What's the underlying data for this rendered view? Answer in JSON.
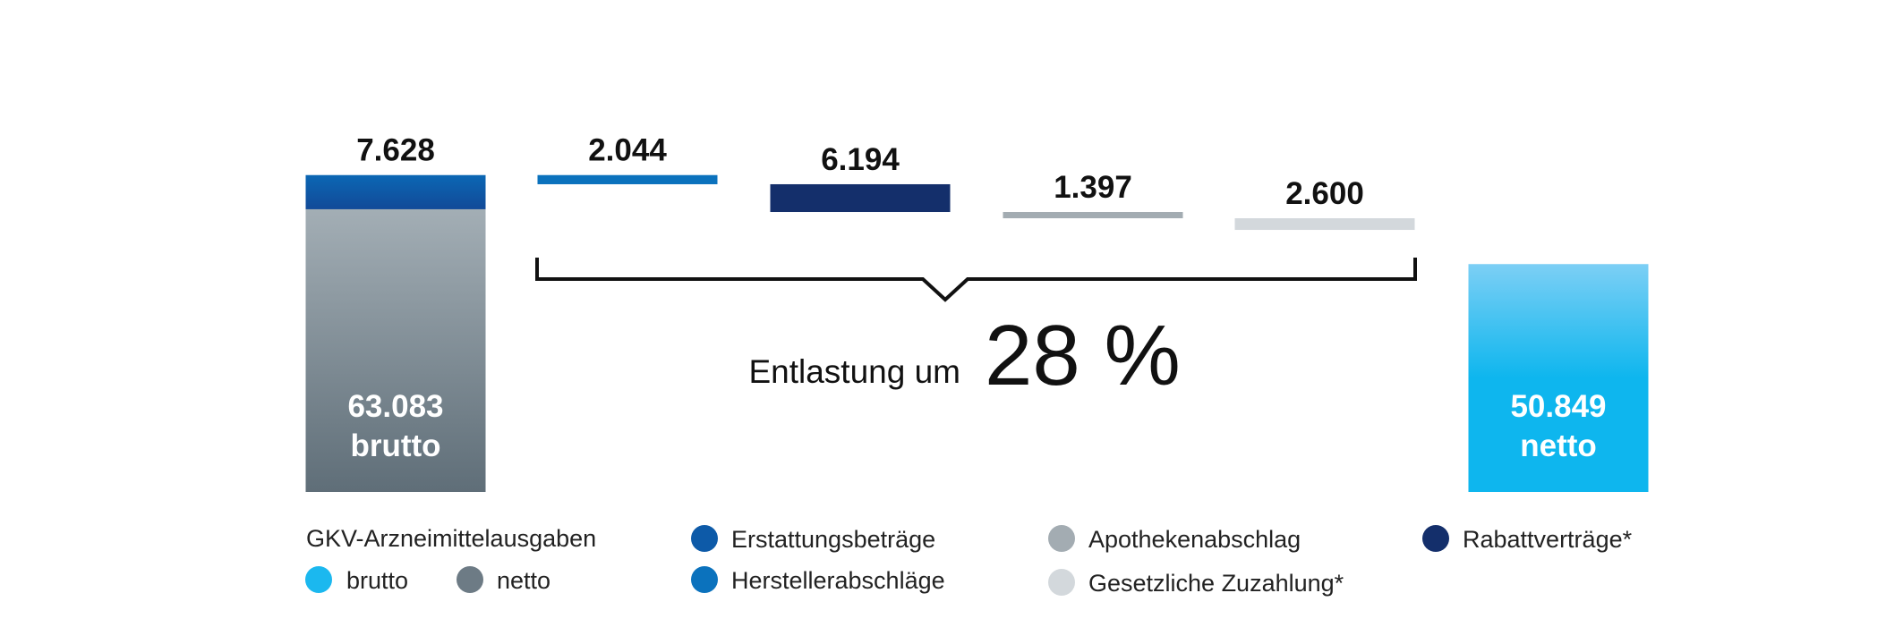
{
  "chart_data": {
    "type": "bar",
    "subtype": "waterfall",
    "bars": [
      {
        "id": "brutto",
        "value": 63083,
        "value_label": "63.083",
        "sub_label": "brutto",
        "top_value": 7628,
        "top_label": "7.628",
        "colors": [
          "#a3aeb5",
          "#5f6e78"
        ],
        "top_colors": [
          "#0b67b4",
          "#124a98"
        ]
      },
      {
        "id": "erstattung",
        "value": 2044,
        "value_label": "2.044",
        "color": "#0b72bd"
      },
      {
        "id": "rabatt",
        "value": 6194,
        "value_label": "6.194",
        "color": "#142f6b"
      },
      {
        "id": "apotheke",
        "value": 1397,
        "value_label": "1.397",
        "color": "#a3acb2"
      },
      {
        "id": "zuzahlung",
        "value": 2600,
        "value_label": "2.600",
        "color": "#d3d8dc"
      },
      {
        "id": "netto",
        "value": 50849,
        "value_label": "50.849",
        "sub_label": "netto",
        "colors": [
          "#7ccff5",
          "#0eb6ee"
        ]
      }
    ],
    "annotation": {
      "text": "Entlastung um",
      "percent": "28 %"
    },
    "legend": {
      "heading": "GKV-Arzneimittelausgaben",
      "items": [
        {
          "label": "brutto",
          "color": "#1bb8ef"
        },
        {
          "label": "netto",
          "color": "#6d7b85"
        },
        {
          "label": "Erstattungsbeträge",
          "color": "#0d5aa8"
        },
        {
          "label": "Herstellerabschläge",
          "color": "#0b72bd"
        },
        {
          "label": "Apothekenabschlag",
          "color": "#a3acb2"
        },
        {
          "label": "Gesetzliche Zuzahlung*",
          "color": "#d3d8dc"
        },
        {
          "label": "Rabattverträge*",
          "color": "#142f6b"
        }
      ]
    }
  }
}
